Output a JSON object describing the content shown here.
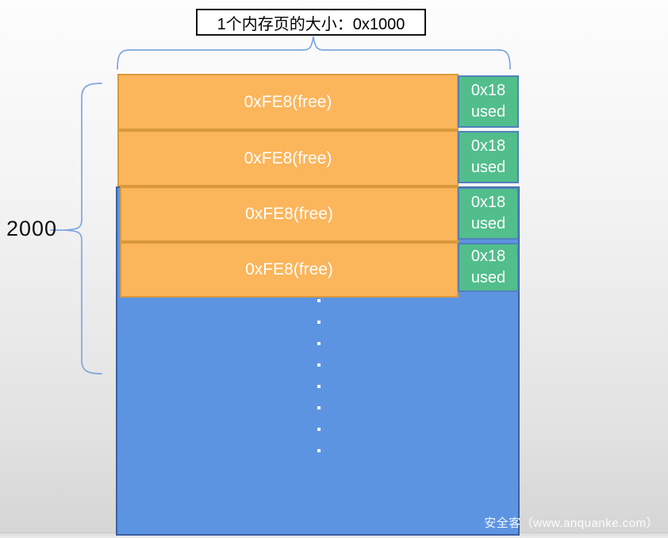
{
  "page": {
    "title_label": "1个内存页的大小：0x1000",
    "left_count_label": "2000",
    "watermark": "安全客（www.anquanke.com）"
  },
  "memory_rows": [
    {
      "free": "0xFE8(free)",
      "used_size": "0x18",
      "used_word": "used"
    },
    {
      "free": "0xFE8(free)",
      "used_size": "0x18",
      "used_word": "used"
    },
    {
      "free": "0xFE8(free)",
      "used_size": "0x18",
      "used_word": "used"
    },
    {
      "free": "0xFE8(free)",
      "used_size": "0x18",
      "used_word": "used"
    }
  ],
  "ellipsis": {
    "count": 8
  },
  "colors": {
    "orange": "#FBB55B",
    "orange-border": "#D9993B",
    "green": "#52BE8C",
    "green-border": "#5081BD",
    "blue": "#5D94E2",
    "blue-border": "#3A61A4",
    "brace": "#7EA6E0"
  }
}
